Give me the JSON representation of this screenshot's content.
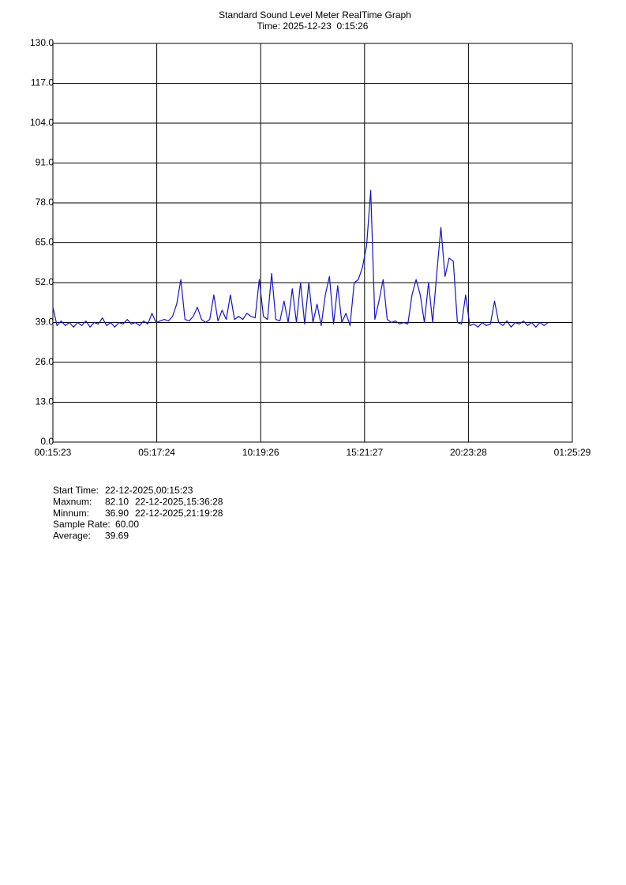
{
  "chart_data": {
    "type": "line",
    "title": "Standard Sound Level Meter RealTime Graph",
    "subtitle": "Time: 2025-12-23  0:15:26",
    "color": "#1414c8",
    "grid": true,
    "xlim": [
      0,
      90606
    ],
    "xticks": [
      {
        "value": 0,
        "label": "00:15:23"
      },
      {
        "value": 18121,
        "label": "05:17:24"
      },
      {
        "value": 36243,
        "label": "10:19:26"
      },
      {
        "value": 54364,
        "label": "15:21:27"
      },
      {
        "value": 72485,
        "label": "20:23:28"
      },
      {
        "value": 90606,
        "label": "01:25:29"
      }
    ],
    "ylim": [
      0,
      130
    ],
    "yticks": [
      {
        "value": 0,
        "label": "0.0"
      },
      {
        "value": 13,
        "label": "13.0"
      },
      {
        "value": 26,
        "label": "26.0"
      },
      {
        "value": 39,
        "label": "39.0"
      },
      {
        "value": 52,
        "label": "52.0"
      },
      {
        "value": 65,
        "label": "65.0"
      },
      {
        "value": 78,
        "label": "78.0"
      },
      {
        "value": 91,
        "label": "91.0"
      },
      {
        "value": 104,
        "label": "104.0"
      },
      {
        "value": 117,
        "label": "117.0"
      },
      {
        "value": 130,
        "label": "130.0"
      }
    ],
    "x": [
      0,
      720,
      1440,
      2160,
      2880,
      3600,
      4320,
      5040,
      5760,
      6480,
      7200,
      7920,
      8640,
      9360,
      10080,
      10800,
      11520,
      12240,
      12960,
      13680,
      14400,
      15120,
      15840,
      16560,
      17280,
      18000,
      18720,
      19440,
      20160,
      20880,
      21600,
      22320,
      23040,
      23760,
      24480,
      25200,
      25920,
      26640,
      27360,
      28080,
      28800,
      29520,
      30240,
      30960,
      31680,
      32400,
      33120,
      33840,
      34560,
      35280,
      36000,
      36720,
      37440,
      38160,
      38880,
      39600,
      40320,
      41040,
      41760,
      42480,
      43200,
      43920,
      44640,
      45360,
      46080,
      46800,
      47520,
      48240,
      48960,
      49680,
      50400,
      51120,
      51840,
      52560,
      53280,
      54000,
      54720,
      55440,
      56160,
      56880,
      57600,
      58320,
      59040,
      59760,
      60480,
      61200,
      61920,
      62640,
      63360,
      64080,
      64800,
      65520,
      66240,
      66960,
      67680,
      68400,
      69120,
      69840,
      70560,
      71280,
      72000,
      72720,
      73440,
      74160,
      74880,
      75600,
      76320,
      77040,
      77760,
      78480,
      79200,
      79920,
      80640,
      81360,
      82080,
      82800,
      83520,
      84240,
      84960,
      85680,
      86400
    ],
    "values": [
      44,
      38,
      39.5,
      38,
      39,
      37.5,
      39,
      38,
      39.5,
      37.5,
      39,
      38.5,
      40.5,
      38,
      39,
      37.5,
      39,
      38.5,
      40,
      38.5,
      39,
      38,
      39.5,
      38.5,
      42,
      39,
      39.5,
      40,
      39.5,
      41,
      45,
      53,
      40,
      39.5,
      41,
      44,
      40,
      39,
      40,
      48,
      39.5,
      43,
      40,
      48,
      40,
      41,
      40,
      42,
      41,
      40.5,
      53,
      41,
      40,
      55,
      40,
      39.5,
      46,
      39,
      50,
      39,
      52,
      38.5,
      52,
      39,
      45,
      38,
      48,
      54,
      38.5,
      51,
      39,
      42,
      38,
      52,
      53,
      57,
      64,
      82.1,
      40,
      46,
      53,
      40,
      39,
      39.5,
      38.5,
      39,
      38.5,
      48,
      53,
      48,
      39,
      52,
      39,
      55,
      70,
      54,
      60,
      59,
      39,
      38.5,
      48,
      38,
      38.5,
      37.5,
      39,
      38,
      38.5,
      46,
      39,
      38,
      39.5,
      37.5,
      39,
      38.5,
      39.5,
      38,
      39,
      37.5,
      39,
      38,
      39
    ]
  },
  "stats": [
    {
      "label": "Start Time:",
      "value": "22-12-2025,00:15:23"
    },
    {
      "label": "Maxnum:",
      "value": "82.10",
      "time": "22-12-2025,15:36:28"
    },
    {
      "label": "Minnum:",
      "value": "36.90",
      "time": "22-12-2025,21:19:28"
    },
    {
      "label": "Sample Rate:",
      "value": "60.00"
    },
    {
      "label": "Average:",
      "value": "39.69"
    }
  ]
}
